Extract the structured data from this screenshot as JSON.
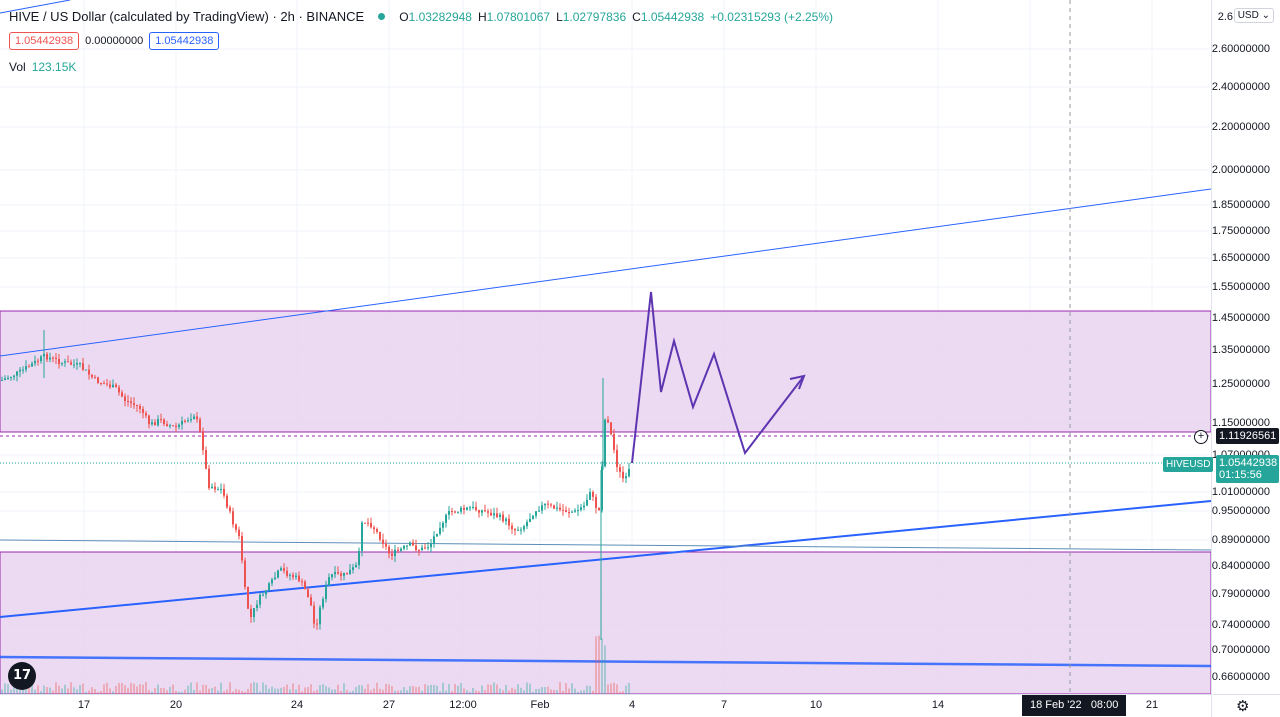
{
  "header": {
    "title": "HIVE / US Dollar (calculated by TradingView) · 2h · BINANCE",
    "open_label": "O",
    "open": "1.03282948",
    "high_label": "H",
    "high": "1.07801067",
    "low_label": "L",
    "low": "1.02797836",
    "close_label": "C",
    "close": "1.05442938",
    "change": "+0.02315293 (+2.25%)"
  },
  "trade": {
    "sell": "1.05442938",
    "spread": "0.00000000",
    "buy": "1.05442938"
  },
  "volume": {
    "label": "Vol",
    "value": "123.15K"
  },
  "price_axis": {
    "currency": "USD",
    "labels": [
      "2.6",
      "2.60000000",
      "2.40000000",
      "2.20000000",
      "2.00000000",
      "1.85000000",
      "1.75000000",
      "1.65000000",
      "1.55000000",
      "1.45000000",
      "1.35000000",
      "1.25000000",
      "1.15000000",
      "1.07000000",
      "1.01000000",
      "0.95000000",
      "0.89000000",
      "0.84000000",
      "0.79000000",
      "0.74000000",
      "0.70000000",
      "0.66000000"
    ],
    "horizontal_line_tag": "1.11926561",
    "last_price_tag": "1.05442938",
    "countdown": "01:15:56",
    "symbol_tag": "HIVEUSD"
  },
  "time_axis": {
    "labels": [
      "17",
      "20",
      "24",
      "27",
      "12:00",
      "Feb",
      "4",
      "7",
      "10",
      "14",
      "21"
    ],
    "crosshair_date": "18 Feb '22",
    "crosshair_time": "08:00"
  },
  "colors": {
    "up": "#26a69a",
    "down": "#ef5350",
    "zone_fill": "#e8d3ef",
    "zone_border": "#9c27b0",
    "trendline": "#2962ff",
    "projection": "#5e35b1",
    "grid": "#f0f3fa"
  },
  "icons": {
    "logo": "tradingview-logo-icon",
    "settings": "gear-icon",
    "add": "plus-circle-icon",
    "currency_dropdown": "chevron-down-icon"
  }
}
